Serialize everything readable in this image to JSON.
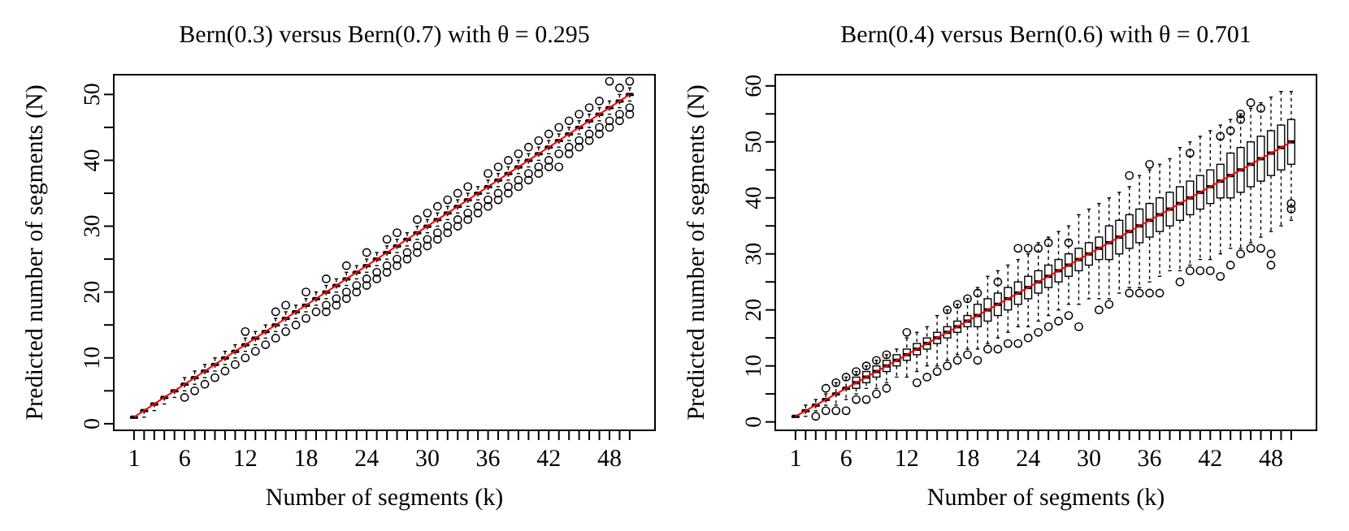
{
  "chart_data": [
    {
      "type": "box",
      "title": "Bern(0.3) versus Bern(0.7) with θ = 0.295",
      "xlabel": "Number of segments (k)",
      "ylabel": "Predicted number of segments (N)",
      "categories": [
        "1",
        null,
        null,
        null,
        null,
        "6",
        null,
        null,
        null,
        null,
        null,
        "12",
        null,
        null,
        null,
        null,
        null,
        "18",
        null,
        null,
        null,
        null,
        null,
        "24",
        null,
        null,
        null,
        null,
        null,
        "30",
        null,
        null,
        null,
        null,
        null,
        "36",
        null,
        null,
        null,
        null,
        null,
        "42",
        null,
        null,
        null,
        null,
        null,
        "48",
        null,
        null
      ],
      "ylim": [
        -1,
        53
      ],
      "yticks": [
        0,
        {
          "value": 5,
          "label": null
        },
        10,
        {
          "value": 15,
          "label": null
        },
        20,
        {
          "value": 25,
          "label": null
        },
        30,
        {
          "value": 35,
          "label": null
        },
        40,
        {
          "value": 45,
          "label": null
        },
        50
      ],
      "series": [
        {
          "color": "#000000",
          "boxes": [
            {
              "low": 1,
              "q1": 1,
              "median": 1,
              "q3": 1,
              "high": 1
            },
            {
              "low": 1,
              "q1": 2,
              "median": 2,
              "q3": 2,
              "high": 2
            },
            {
              "low": 2,
              "q1": 3,
              "median": 3,
              "q3": 3,
              "high": 3
            },
            {
              "low": 3,
              "q1": 4,
              "median": 4,
              "q3": 4,
              "high": 4
            },
            {
              "low": 4,
              "q1": 5,
              "median": 5,
              "q3": 5,
              "high": 5
            },
            {
              "low": 5,
              "q1": 6,
              "median": 6,
              "q3": 6,
              "high": 7,
              "outliers": [
                4
              ]
            },
            {
              "low": 6,
              "q1": 7,
              "median": 7,
              "q3": 7,
              "high": 8,
              "outliers": [
                5
              ]
            },
            {
              "low": 7,
              "q1": 8,
              "median": 8,
              "q3": 8,
              "high": 9,
              "outliers": [
                6
              ]
            },
            {
              "low": 8,
              "q1": 9,
              "median": 9,
              "q3": 9,
              "high": 10,
              "outliers": [
                7
              ]
            },
            {
              "low": 9,
              "q1": 10,
              "median": 10,
              "q3": 10,
              "high": 11,
              "outliers": [
                8
              ]
            },
            {
              "low": 10,
              "q1": 11,
              "median": 11,
              "q3": 11,
              "high": 12,
              "outliers": [
                9
              ]
            },
            {
              "low": 11,
              "q1": 12,
              "median": 12,
              "q3": 12,
              "high": 13,
              "outliers": [
                10,
                14
              ]
            },
            {
              "low": 12,
              "q1": 13,
              "median": 13,
              "q3": 13,
              "high": 14,
              "outliers": [
                11
              ]
            },
            {
              "low": 13,
              "q1": 14,
              "median": 14,
              "q3": 14,
              "high": 15,
              "outliers": [
                12
              ]
            },
            {
              "low": 14,
              "q1": 15,
              "median": 15,
              "q3": 15,
              "high": 16,
              "outliers": [
                13,
                17
              ]
            },
            {
              "low": 15,
              "q1": 16,
              "median": 16,
              "q3": 16,
              "high": 17,
              "outliers": [
                14,
                18
              ]
            },
            {
              "low": 16,
              "q1": 17,
              "median": 17,
              "q3": 17,
              "high": 18,
              "outliers": [
                15
              ]
            },
            {
              "low": 17,
              "q1": 18,
              "median": 18,
              "q3": 18,
              "high": 19,
              "outliers": [
                16,
                20
              ]
            },
            {
              "low": 18,
              "q1": 19,
              "median": 19,
              "q3": 19,
              "high": 20,
              "outliers": [
                17
              ]
            },
            {
              "low": 19,
              "q1": 20,
              "median": 20,
              "q3": 20,
              "high": 21,
              "outliers": [
                17,
                18,
                22
              ]
            },
            {
              "low": 20,
              "q1": 21,
              "median": 21,
              "q3": 21,
              "high": 22,
              "outliers": [
                18,
                19
              ]
            },
            {
              "low": 21,
              "q1": 22,
              "median": 22,
              "q3": 22,
              "high": 23,
              "outliers": [
                19,
                20,
                24
              ]
            },
            {
              "low": 22,
              "q1": 23,
              "median": 23,
              "q3": 23,
              "high": 24,
              "outliers": [
                20,
                21
              ]
            },
            {
              "low": 23,
              "q1": 24,
              "median": 24,
              "q3": 24,
              "high": 25,
              "outliers": [
                21,
                22,
                26
              ]
            },
            {
              "low": 24,
              "q1": 25,
              "median": 25,
              "q3": 25,
              "high": 26,
              "outliers": [
                22,
                23
              ]
            },
            {
              "low": 25,
              "q1": 26,
              "median": 26,
              "q3": 26,
              "high": 27,
              "outliers": [
                23,
                24,
                28
              ]
            },
            {
              "low": 26,
              "q1": 27,
              "median": 27,
              "q3": 27,
              "high": 28,
              "outliers": [
                24,
                25,
                29
              ]
            },
            {
              "low": 27,
              "q1": 28,
              "median": 28,
              "q3": 28,
              "high": 29,
              "outliers": [
                25,
                26
              ]
            },
            {
              "low": 28,
              "q1": 29,
              "median": 29,
              "q3": 29,
              "high": 30,
              "outliers": [
                26,
                27,
                31
              ]
            },
            {
              "low": 29,
              "q1": 30,
              "median": 30,
              "q3": 30,
              "high": 31,
              "outliers": [
                27,
                28,
                32
              ]
            },
            {
              "low": 30,
              "q1": 31,
              "median": 31,
              "q3": 31,
              "high": 32,
              "outliers": [
                28,
                29,
                33
              ]
            },
            {
              "low": 31,
              "q1": 32,
              "median": 32,
              "q3": 32,
              "high": 33,
              "outliers": [
                29,
                30,
                34
              ]
            },
            {
              "low": 32,
              "q1": 33,
              "median": 33,
              "q3": 33,
              "high": 34,
              "outliers": [
                30,
                31,
                35
              ]
            },
            {
              "low": 33,
              "q1": 34,
              "median": 34,
              "q3": 34,
              "high": 35,
              "outliers": [
                31,
                32,
                36
              ]
            },
            {
              "low": 34,
              "q1": 35,
              "median": 35,
              "q3": 35,
              "high": 36,
              "outliers": [
                32,
                33
              ]
            },
            {
              "low": 35,
              "q1": 36,
              "median": 36,
              "q3": 36,
              "high": 37,
              "outliers": [
                33,
                34,
                38
              ]
            },
            {
              "low": 36,
              "q1": 37,
              "median": 37,
              "q3": 37,
              "high": 38,
              "outliers": [
                34,
                35,
                39
              ]
            },
            {
              "low": 37,
              "q1": 38,
              "median": 38,
              "q3": 38,
              "high": 39,
              "outliers": [
                35,
                36,
                40
              ]
            },
            {
              "low": 38,
              "q1": 39,
              "median": 39,
              "q3": 39,
              "high": 40,
              "outliers": [
                36,
                37,
                41
              ]
            },
            {
              "low": 39,
              "q1": 40,
              "median": 40,
              "q3": 40,
              "high": 41,
              "outliers": [
                37,
                38,
                42
              ]
            },
            {
              "low": 40,
              "q1": 41,
              "median": 41,
              "q3": 41,
              "high": 42,
              "outliers": [
                38,
                39,
                43
              ]
            },
            {
              "low": 41,
              "q1": 42,
              "median": 42,
              "q3": 42,
              "high": 43,
              "outliers": [
                39,
                40,
                44
              ]
            },
            {
              "low": 42,
              "q1": 43,
              "median": 43,
              "q3": 43,
              "high": 44,
              "outliers": [
                39,
                41,
                45
              ]
            },
            {
              "low": 43,
              "q1": 44,
              "median": 44,
              "q3": 44,
              "high": 45,
              "outliers": [
                41,
                42,
                46
              ]
            },
            {
              "low": 44,
              "q1": 45,
              "median": 45,
              "q3": 45,
              "high": 46,
              "outliers": [
                42,
                43,
                47
              ]
            },
            {
              "low": 45,
              "q1": 46,
              "median": 46,
              "q3": 46,
              "high": 47,
              "outliers": [
                43,
                44,
                48
              ]
            },
            {
              "low": 46,
              "q1": 47,
              "median": 47,
              "q3": 47,
              "high": 48,
              "outliers": [
                44,
                45,
                49
              ]
            },
            {
              "low": 47,
              "q1": 48,
              "median": 48,
              "q3": 48,
              "high": 49,
              "outliers": [
                45,
                46,
                52
              ]
            },
            {
              "low": 48,
              "q1": 49,
              "median": 49,
              "q3": 49,
              "high": 50,
              "outliers": [
                46,
                47,
                51
              ]
            },
            {
              "low": 49,
              "q1": 50,
              "median": 50,
              "q3": 50,
              "high": 51,
              "outliers": [
                47,
                48,
                52
              ]
            }
          ]
        },
        {
          "type": "line",
          "color": "#ff0000",
          "values": [
            1,
            2,
            3,
            4,
            5,
            6,
            7,
            8,
            9,
            10,
            11,
            12,
            13,
            14,
            15,
            16,
            17,
            18,
            19,
            20,
            21,
            22,
            23,
            24,
            25,
            26,
            27,
            28,
            29,
            30,
            31,
            32,
            33,
            34,
            35,
            36,
            37,
            38,
            39,
            40,
            41,
            42,
            43,
            44,
            45,
            46,
            47,
            48,
            49,
            50
          ]
        }
      ]
    },
    {
      "type": "box",
      "title": "Bern(0.4) versus Bern(0.6) with θ = 0.701",
      "xlabel": "Number of segments (k)",
      "ylabel": "Predicted number of segments (N)",
      "categories": [
        "1",
        null,
        null,
        null,
        null,
        "6",
        null,
        null,
        null,
        null,
        null,
        "12",
        null,
        null,
        null,
        null,
        null,
        "18",
        null,
        null,
        null,
        null,
        null,
        "24",
        null,
        null,
        null,
        null,
        null,
        "30",
        null,
        null,
        null,
        null,
        null,
        "36",
        null,
        null,
        null,
        null,
        null,
        "42",
        null,
        null,
        null,
        null,
        null,
        "48",
        null,
        null
      ],
      "ylim": [
        -1.5,
        62
      ],
      "yticks": [
        0,
        {
          "value": 5,
          "label": null
        },
        10,
        {
          "value": 15,
          "label": null
        },
        20,
        {
          "value": 25,
          "label": null
        },
        30,
        {
          "value": 35,
          "label": null
        },
        40,
        {
          "value": 45,
          "label": null
        },
        50,
        {
          "value": 55,
          "label": null
        },
        60
      ],
      "series": [
        {
          "color": "#000000",
          "boxes": [
            {
              "low": 1,
              "q1": 1,
              "median": 1,
              "q3": 1,
              "high": 1
            },
            {
              "low": 1,
              "q1": 2,
              "median": 2,
              "q3": 2,
              "high": 3
            },
            {
              "low": 2,
              "q1": 3,
              "median": 3,
              "q3": 3,
              "high": 4,
              "outliers": [
                1
              ]
            },
            {
              "low": 3,
              "q1": 4,
              "median": 4,
              "q3": 4,
              "high": 5,
              "outliers": [
                2,
                6
              ]
            },
            {
              "low": 3,
              "q1": 5,
              "median": 5,
              "q3": 5,
              "high": 7,
              "outliers": [
                2,
                7
              ]
            },
            {
              "low": 4,
              "q1": 6,
              "median": 6,
              "q3": 6,
              "high": 8,
              "outliers": [
                2,
                8
              ]
            },
            {
              "low": 5,
              "q1": 6,
              "median": 7,
              "q3": 8,
              "high": 9,
              "outliers": [
                4,
                9
              ]
            },
            {
              "low": 6,
              "q1": 7,
              "median": 8,
              "q3": 9,
              "high": 10,
              "outliers": [
                4,
                10
              ]
            },
            {
              "low": 6,
              "q1": 8,
              "median": 9,
              "q3": 10,
              "high": 11,
              "outliers": [
                5,
                11
              ]
            },
            {
              "low": 7,
              "q1": 9,
              "median": 10,
              "q3": 11,
              "high": 12,
              "outliers": [
                6,
                12
              ]
            },
            {
              "low": 8,
              "q1": 10,
              "median": 11,
              "q3": 12,
              "high": 13
            },
            {
              "low": 8,
              "q1": 11,
              "median": 12,
              "q3": 13,
              "high": 15,
              "outliers": [
                16
              ]
            },
            {
              "low": 9,
              "q1": 12,
              "median": 13,
              "q3": 14,
              "high": 16,
              "outliers": [
                7
              ]
            },
            {
              "low": 10,
              "q1": 13,
              "median": 14,
              "q3": 15,
              "high": 17,
              "outliers": [
                8
              ]
            },
            {
              "low": 10,
              "q1": 14,
              "median": 15,
              "q3": 16,
              "high": 19,
              "outliers": [
                9
              ]
            },
            {
              "low": 11,
              "q1": 15,
              "median": 16,
              "q3": 17,
              "high": 20,
              "outliers": [
                10,
                20
              ]
            },
            {
              "low": 12,
              "q1": 16,
              "median": 17,
              "q3": 18,
              "high": 21,
              "outliers": [
                11,
                21
              ]
            },
            {
              "low": 13,
              "q1": 17,
              "median": 18,
              "q3": 19,
              "high": 22,
              "outliers": [
                12,
                22
              ]
            },
            {
              "low": 13,
              "q1": 17,
              "median": 19,
              "q3": 21,
              "high": 24,
              "outliers": [
                11,
                23
              ]
            },
            {
              "low": 14,
              "q1": 18,
              "median": 20,
              "q3": 22,
              "high": 26,
              "outliers": [
                13
              ]
            },
            {
              "low": 15,
              "q1": 19,
              "median": 21,
              "q3": 23,
              "high": 27,
              "outliers": [
                13,
                25
              ]
            },
            {
              "low": 16,
              "q1": 20,
              "median": 22,
              "q3": 24,
              "high": 28,
              "outliers": [
                14
              ]
            },
            {
              "low": 17,
              "q1": 21,
              "median": 23,
              "q3": 25,
              "high": 29,
              "outliers": [
                14,
                31
              ]
            },
            {
              "low": 17,
              "q1": 22,
              "median": 24,
              "q3": 26,
              "high": 30,
              "outliers": [
                15,
                31
              ]
            },
            {
              "low": 18,
              "q1": 23,
              "median": 25,
              "q3": 27,
              "high": 32,
              "outliers": [
                16,
                31
              ]
            },
            {
              "low": 19,
              "q1": 24,
              "median": 26,
              "q3": 28,
              "high": 33,
              "outliers": [
                17,
                32
              ]
            },
            {
              "low": 20,
              "q1": 25,
              "median": 27,
              "q3": 29,
              "high": 34,
              "outliers": [
                18
              ]
            },
            {
              "low": 21,
              "q1": 26,
              "median": 28,
              "q3": 30,
              "high": 35,
              "outliers": [
                19,
                32
              ]
            },
            {
              "low": 21,
              "q1": 27,
              "median": 29,
              "q3": 31,
              "high": 37,
              "outliers": [
                17
              ]
            },
            {
              "low": 22,
              "q1": 28,
              "median": 30,
              "q3": 32,
              "high": 38
            },
            {
              "low": 22,
              "q1": 29,
              "median": 31,
              "q3": 33,
              "high": 39,
              "outliers": [
                20
              ]
            },
            {
              "low": 22,
              "q1": 29,
              "median": 32,
              "q3": 35,
              "high": 40,
              "outliers": [
                21
              ]
            },
            {
              "low": 23,
              "q1": 30,
              "median": 33,
              "q3": 36,
              "high": 41
            },
            {
              "low": 24,
              "q1": 31,
              "median": 34,
              "q3": 37,
              "high": 42,
              "outliers": [
                23,
                44
              ]
            },
            {
              "low": 24,
              "q1": 32,
              "median": 35,
              "q3": 38,
              "high": 44,
              "outliers": [
                23
              ]
            },
            {
              "low": 25,
              "q1": 33,
              "median": 36,
              "q3": 39,
              "high": 45,
              "outliers": [
                23,
                46
              ]
            },
            {
              "low": 26,
              "q1": 34,
              "median": 37,
              "q3": 40,
              "high": 46,
              "outliers": [
                23
              ]
            },
            {
              "low": 27,
              "q1": 35,
              "median": 38,
              "q3": 41,
              "high": 47
            },
            {
              "low": 27,
              "q1": 36,
              "median": 39,
              "q3": 42,
              "high": 49,
              "outliers": [
                25
              ]
            },
            {
              "low": 28,
              "q1": 37,
              "median": 40,
              "q3": 43,
              "high": 50,
              "outliers": [
                27,
                48
              ]
            },
            {
              "low": 29,
              "q1": 38,
              "median": 41,
              "q3": 44,
              "high": 51,
              "outliers": [
                27
              ]
            },
            {
              "low": 29,
              "q1": 39,
              "median": 42,
              "q3": 45,
              "high": 52,
              "outliers": [
                27
              ]
            },
            {
              "low": 30,
              "q1": 40,
              "median": 43,
              "q3": 46,
              "high": 53,
              "outliers": [
                26,
                51
              ]
            },
            {
              "low": 31,
              "q1": 40,
              "median": 44,
              "q3": 48,
              "high": 54,
              "outliers": [
                28,
                52
              ]
            },
            {
              "low": 31,
              "q1": 41,
              "median": 45,
              "q3": 49,
              "high": 55,
              "outliers": [
                30,
                54,
                55
              ]
            },
            {
              "low": 32,
              "q1": 42,
              "median": 46,
              "q3": 50,
              "high": 56,
              "outliers": [
                31,
                57
              ]
            },
            {
              "low": 33,
              "q1": 43,
              "median": 47,
              "q3": 51,
              "high": 57,
              "outliers": [
                31,
                56
              ]
            },
            {
              "low": 34,
              "q1": 44,
              "median": 48,
              "q3": 52,
              "high": 58,
              "outliers": [
                28,
                30
              ]
            },
            {
              "low": 35,
              "q1": 45,
              "median": 49,
              "q3": 53,
              "high": 59
            },
            {
              "low": 36,
              "q1": 46,
              "median": 50,
              "q3": 54,
              "high": 59,
              "outliers": [
                38,
                39
              ]
            }
          ]
        },
        {
          "type": "line",
          "color": "#ff0000",
          "values": [
            1,
            2,
            3,
            4,
            5,
            6,
            7,
            8,
            9,
            10,
            11,
            12,
            13,
            14,
            15,
            16,
            17,
            18,
            19,
            20,
            21,
            22,
            23,
            24,
            25,
            26,
            27,
            28,
            29,
            30,
            31,
            32,
            33,
            34,
            35,
            36,
            37,
            38,
            39,
            40,
            41,
            42,
            43,
            44,
            45,
            46,
            47,
            48,
            49,
            50
          ]
        }
      ]
    }
  ]
}
